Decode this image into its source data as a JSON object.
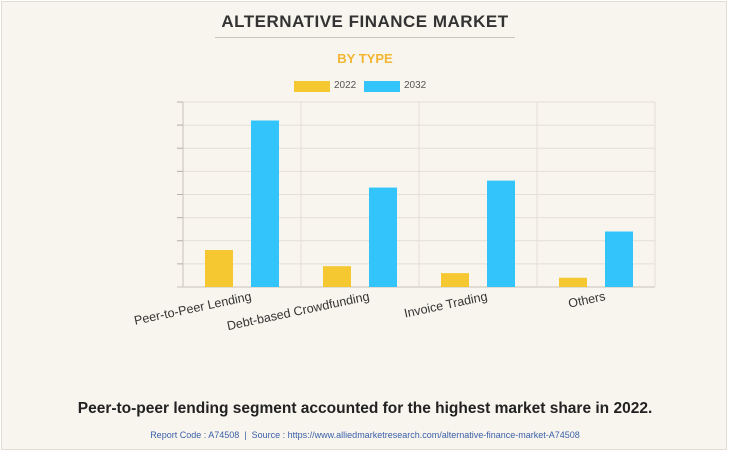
{
  "title": "ALTERNATIVE FINANCE MARKET",
  "subtitle": "BY TYPE",
  "headline": "Peer-to-peer lending segment accounted for the highest market share in 2022.",
  "footer": {
    "report_code": "Report Code : A74508",
    "separator": "|",
    "source": "Source : https://www.alliedmarketresearch.com/alternative-finance-market-A74508"
  },
  "colors": {
    "series_2022": "#f5c832",
    "series_2032": "#33c4fc",
    "title": "#333333",
    "subtitle": "#f2b631"
  },
  "chart_data": {
    "type": "bar",
    "categories": [
      "Peer-to-Peer Lending",
      "Debt-based Crowdfunding",
      "Invoice Trading",
      "Others"
    ],
    "series": [
      {
        "name": "2022",
        "values": [
          16,
          9,
          6,
          4
        ]
      },
      {
        "name": "2032",
        "values": [
          72,
          43,
          46,
          24
        ]
      }
    ],
    "ylim": [
      0,
      80
    ],
    "grid": true,
    "legend": "top-center"
  }
}
